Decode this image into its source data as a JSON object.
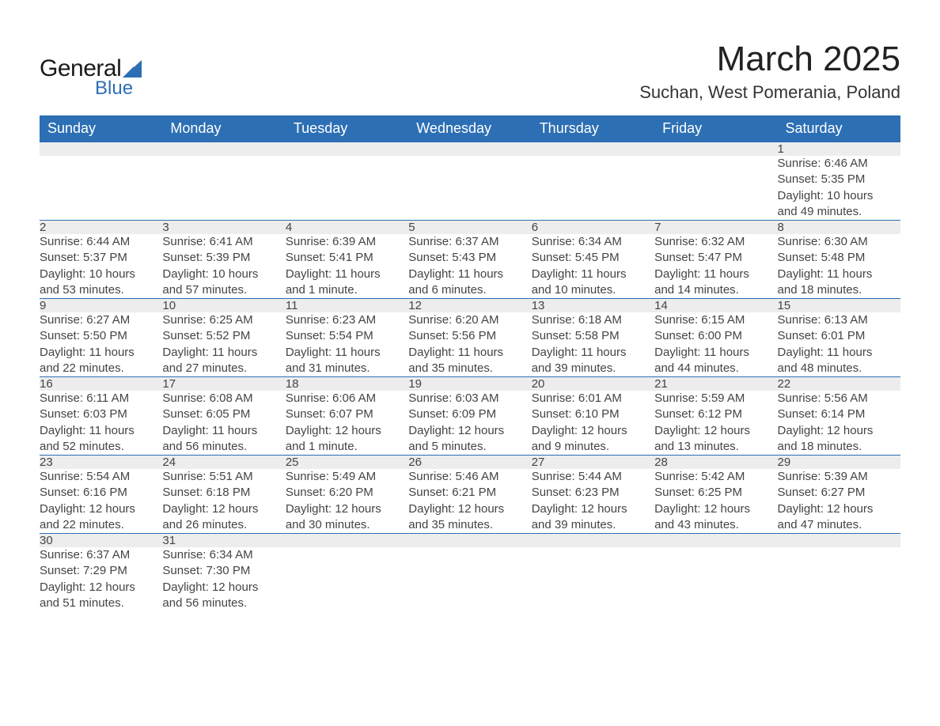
{
  "logo": {
    "general": "General",
    "blue": "Blue",
    "triangle_color": "#2d6fb4"
  },
  "title": "March 2025",
  "location": "Suchan, West Pomerania, Poland",
  "colors": {
    "header_bg": "#2d6fb4",
    "header_fg": "#ffffff",
    "daynum_bg": "#ededed",
    "text": "#444444",
    "row_divider": "#2d6fb4"
  },
  "typography": {
    "title_fontsize": 44,
    "location_fontsize": 22,
    "weekday_fontsize": 18,
    "daynum_fontsize": 17,
    "body_fontsize": 15
  },
  "weekdays": [
    "Sunday",
    "Monday",
    "Tuesday",
    "Wednesday",
    "Thursday",
    "Friday",
    "Saturday"
  ],
  "weeks": [
    [
      null,
      null,
      null,
      null,
      null,
      null,
      {
        "n": "1",
        "sunrise": "Sunrise: 6:46 AM",
        "sunset": "Sunset: 5:35 PM",
        "day1": "Daylight: 10 hours",
        "day2": "and 49 minutes."
      }
    ],
    [
      {
        "n": "2",
        "sunrise": "Sunrise: 6:44 AM",
        "sunset": "Sunset: 5:37 PM",
        "day1": "Daylight: 10 hours",
        "day2": "and 53 minutes."
      },
      {
        "n": "3",
        "sunrise": "Sunrise: 6:41 AM",
        "sunset": "Sunset: 5:39 PM",
        "day1": "Daylight: 10 hours",
        "day2": "and 57 minutes."
      },
      {
        "n": "4",
        "sunrise": "Sunrise: 6:39 AM",
        "sunset": "Sunset: 5:41 PM",
        "day1": "Daylight: 11 hours",
        "day2": "and 1 minute."
      },
      {
        "n": "5",
        "sunrise": "Sunrise: 6:37 AM",
        "sunset": "Sunset: 5:43 PM",
        "day1": "Daylight: 11 hours",
        "day2": "and 6 minutes."
      },
      {
        "n": "6",
        "sunrise": "Sunrise: 6:34 AM",
        "sunset": "Sunset: 5:45 PM",
        "day1": "Daylight: 11 hours",
        "day2": "and 10 minutes."
      },
      {
        "n": "7",
        "sunrise": "Sunrise: 6:32 AM",
        "sunset": "Sunset: 5:47 PM",
        "day1": "Daylight: 11 hours",
        "day2": "and 14 minutes."
      },
      {
        "n": "8",
        "sunrise": "Sunrise: 6:30 AM",
        "sunset": "Sunset: 5:48 PM",
        "day1": "Daylight: 11 hours",
        "day2": "and 18 minutes."
      }
    ],
    [
      {
        "n": "9",
        "sunrise": "Sunrise: 6:27 AM",
        "sunset": "Sunset: 5:50 PM",
        "day1": "Daylight: 11 hours",
        "day2": "and 22 minutes."
      },
      {
        "n": "10",
        "sunrise": "Sunrise: 6:25 AM",
        "sunset": "Sunset: 5:52 PM",
        "day1": "Daylight: 11 hours",
        "day2": "and 27 minutes."
      },
      {
        "n": "11",
        "sunrise": "Sunrise: 6:23 AM",
        "sunset": "Sunset: 5:54 PM",
        "day1": "Daylight: 11 hours",
        "day2": "and 31 minutes."
      },
      {
        "n": "12",
        "sunrise": "Sunrise: 6:20 AM",
        "sunset": "Sunset: 5:56 PM",
        "day1": "Daylight: 11 hours",
        "day2": "and 35 minutes."
      },
      {
        "n": "13",
        "sunrise": "Sunrise: 6:18 AM",
        "sunset": "Sunset: 5:58 PM",
        "day1": "Daylight: 11 hours",
        "day2": "and 39 minutes."
      },
      {
        "n": "14",
        "sunrise": "Sunrise: 6:15 AM",
        "sunset": "Sunset: 6:00 PM",
        "day1": "Daylight: 11 hours",
        "day2": "and 44 minutes."
      },
      {
        "n": "15",
        "sunrise": "Sunrise: 6:13 AM",
        "sunset": "Sunset: 6:01 PM",
        "day1": "Daylight: 11 hours",
        "day2": "and 48 minutes."
      }
    ],
    [
      {
        "n": "16",
        "sunrise": "Sunrise: 6:11 AM",
        "sunset": "Sunset: 6:03 PM",
        "day1": "Daylight: 11 hours",
        "day2": "and 52 minutes."
      },
      {
        "n": "17",
        "sunrise": "Sunrise: 6:08 AM",
        "sunset": "Sunset: 6:05 PM",
        "day1": "Daylight: 11 hours",
        "day2": "and 56 minutes."
      },
      {
        "n": "18",
        "sunrise": "Sunrise: 6:06 AM",
        "sunset": "Sunset: 6:07 PM",
        "day1": "Daylight: 12 hours",
        "day2": "and 1 minute."
      },
      {
        "n": "19",
        "sunrise": "Sunrise: 6:03 AM",
        "sunset": "Sunset: 6:09 PM",
        "day1": "Daylight: 12 hours",
        "day2": "and 5 minutes."
      },
      {
        "n": "20",
        "sunrise": "Sunrise: 6:01 AM",
        "sunset": "Sunset: 6:10 PM",
        "day1": "Daylight: 12 hours",
        "day2": "and 9 minutes."
      },
      {
        "n": "21",
        "sunrise": "Sunrise: 5:59 AM",
        "sunset": "Sunset: 6:12 PM",
        "day1": "Daylight: 12 hours",
        "day2": "and 13 minutes."
      },
      {
        "n": "22",
        "sunrise": "Sunrise: 5:56 AM",
        "sunset": "Sunset: 6:14 PM",
        "day1": "Daylight: 12 hours",
        "day2": "and 18 minutes."
      }
    ],
    [
      {
        "n": "23",
        "sunrise": "Sunrise: 5:54 AM",
        "sunset": "Sunset: 6:16 PM",
        "day1": "Daylight: 12 hours",
        "day2": "and 22 minutes."
      },
      {
        "n": "24",
        "sunrise": "Sunrise: 5:51 AM",
        "sunset": "Sunset: 6:18 PM",
        "day1": "Daylight: 12 hours",
        "day2": "and 26 minutes."
      },
      {
        "n": "25",
        "sunrise": "Sunrise: 5:49 AM",
        "sunset": "Sunset: 6:20 PM",
        "day1": "Daylight: 12 hours",
        "day2": "and 30 minutes."
      },
      {
        "n": "26",
        "sunrise": "Sunrise: 5:46 AM",
        "sunset": "Sunset: 6:21 PM",
        "day1": "Daylight: 12 hours",
        "day2": "and 35 minutes."
      },
      {
        "n": "27",
        "sunrise": "Sunrise: 5:44 AM",
        "sunset": "Sunset: 6:23 PM",
        "day1": "Daylight: 12 hours",
        "day2": "and 39 minutes."
      },
      {
        "n": "28",
        "sunrise": "Sunrise: 5:42 AM",
        "sunset": "Sunset: 6:25 PM",
        "day1": "Daylight: 12 hours",
        "day2": "and 43 minutes."
      },
      {
        "n": "29",
        "sunrise": "Sunrise: 5:39 AM",
        "sunset": "Sunset: 6:27 PM",
        "day1": "Daylight: 12 hours",
        "day2": "and 47 minutes."
      }
    ],
    [
      {
        "n": "30",
        "sunrise": "Sunrise: 6:37 AM",
        "sunset": "Sunset: 7:29 PM",
        "day1": "Daylight: 12 hours",
        "day2": "and 51 minutes."
      },
      {
        "n": "31",
        "sunrise": "Sunrise: 6:34 AM",
        "sunset": "Sunset: 7:30 PM",
        "day1": "Daylight: 12 hours",
        "day2": "and 56 minutes."
      },
      null,
      null,
      null,
      null,
      null
    ]
  ]
}
